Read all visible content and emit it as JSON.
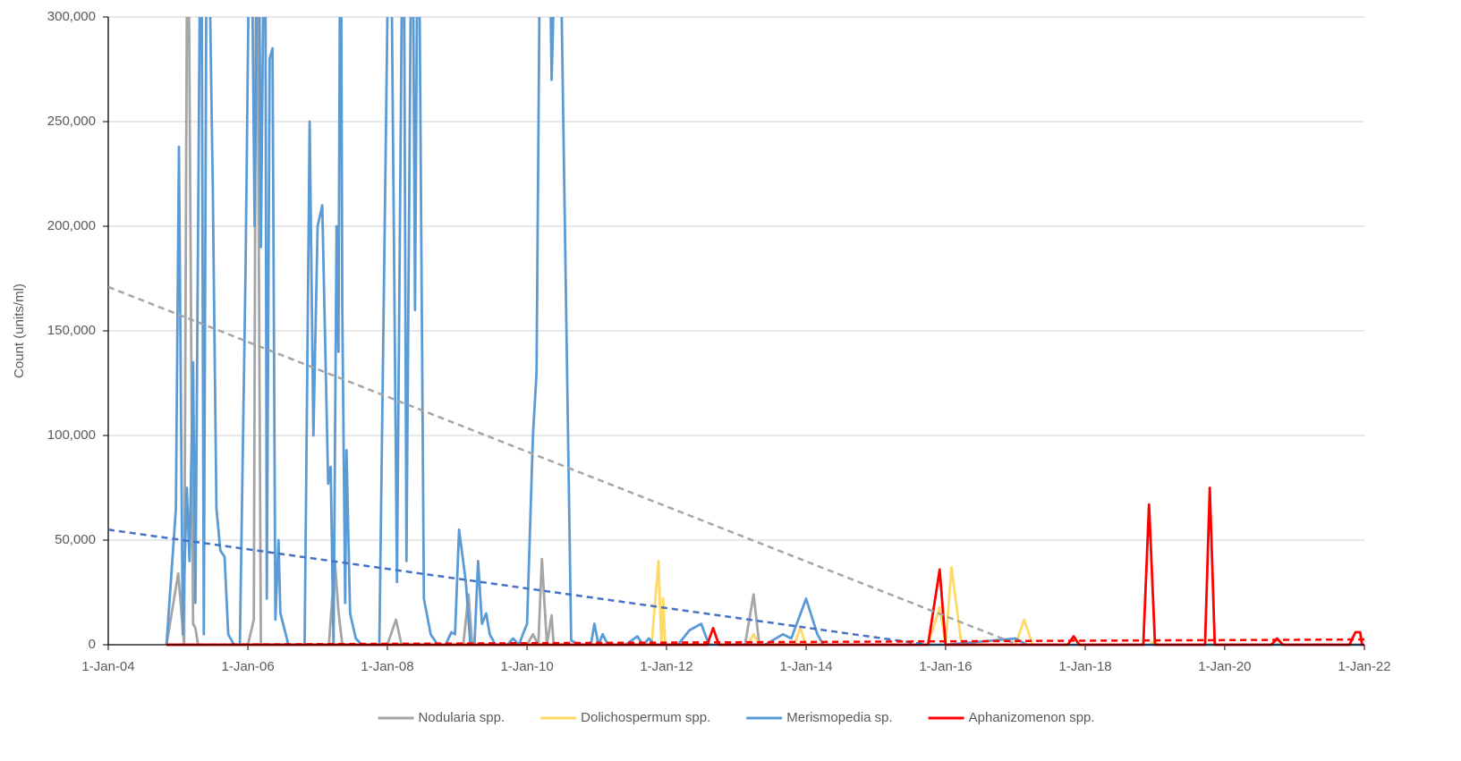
{
  "chart_data": {
    "type": "line",
    "y_label": "Count (units/ml)",
    "xlim": [
      "2004-01-01",
      "2022-01-01"
    ],
    "xticks": [
      {
        "value": "2004-01-01",
        "label": "1-Jan-04"
      },
      {
        "value": "2006-01-01",
        "label": "1-Jan-06"
      },
      {
        "value": "2008-01-01",
        "label": "1-Jan-08"
      },
      {
        "value": "2010-01-01",
        "label": "1-Jan-10"
      },
      {
        "value": "2012-01-01",
        "label": "1-Jan-12"
      },
      {
        "value": "2014-01-01",
        "label": "1-Jan-14"
      },
      {
        "value": "2016-01-01",
        "label": "1-Jan-16"
      },
      {
        "value": "2018-01-01",
        "label": "1-Jan-18"
      },
      {
        "value": "2020-01-01",
        "label": "1-Jan-20"
      },
      {
        "value": "2022-01-01",
        "label": "1-Jan-22"
      }
    ],
    "ylim": [
      0,
      300000
    ],
    "yticks": [
      0,
      {
        "value": 50000,
        "label": "50,000"
      },
      {
        "value": 100000,
        "label": "100,000"
      },
      {
        "value": 150000,
        "label": "150,000"
      },
      {
        "value": 200000,
        "label": "200,000"
      },
      {
        "value": 250000,
        "label": "250,000"
      },
      {
        "value": 300000,
        "label": "300,000"
      }
    ],
    "grid": true,
    "legend": "bottom",
    "series": [
      {
        "name": "Nodularia spp.",
        "color": "#a5a5a5",
        "x": [
          "2004-11-01",
          "2005-01-01",
          "2005-02-01",
          "2005-02-20",
          "2005-03-20",
          "2005-04-01",
          "2005-04-15",
          "2006-01-01",
          "2006-02-01",
          "2006-02-15",
          "2006-03-10",
          "2007-03-01",
          "2007-04-01",
          "2007-04-20",
          "2007-05-10",
          "2008-01-01",
          "2008-02-15",
          "2008-03-15",
          "2009-02-01",
          "2009-03-01",
          "2009-03-20",
          "2010-01-01",
          "2010-02-01",
          "2010-03-01",
          "2010-03-20",
          "2010-04-15",
          "2010-05-10",
          "2010-05-20",
          "2013-02-15",
          "2013-04-01",
          "2013-05-01",
          "2022-01-01"
        ],
        "values": [
          0,
          34000,
          0,
          400000,
          10000,
          8000,
          0,
          0,
          12000,
          400000,
          0,
          0,
          40000,
          16000,
          0,
          0,
          12000,
          0,
          0,
          24000,
          0,
          0,
          5000,
          0,
          41000,
          0,
          14000,
          0,
          0,
          24000,
          0,
          0
        ]
      },
      {
        "name": "Dolichospermum spp.",
        "color": "#ffd966",
        "x": [
          "2004-11-01",
          "2011-10-15",
          "2011-11-20",
          "2011-12-05",
          "2011-12-15",
          "2011-12-25",
          "2013-03-01",
          "2013-04-01",
          "2013-05-01",
          "2013-11-01",
          "2013-12-01",
          "2014-01-01",
          "2015-10-01",
          "2015-12-01",
          "2016-01-01",
          "2016-02-01",
          "2016-03-20",
          "2016-04-01",
          "2017-01-01",
          "2017-02-15",
          "2017-04-01",
          "2018-12-01",
          "2019-01-01",
          "2019-01-15",
          "2022-01-01"
        ],
        "values": [
          0,
          0,
          40000,
          0,
          22000,
          0,
          0,
          5000,
          0,
          0,
          8000,
          0,
          0,
          18000,
          0,
          37000,
          3000,
          0,
          0,
          12000,
          0,
          0,
          2000,
          0,
          0
        ]
      },
      {
        "name": "Merismopedia sp.",
        "color": "#5b9bd5",
        "x": [
          "2004-11-01",
          "2004-12-20",
          "2005-01-05",
          "2005-01-25",
          "2005-02-15",
          "2005-03-01",
          "2005-03-20",
          "2005-04-01",
          "2005-05-01",
          "2005-05-15",
          "2005-06-01",
          "2005-07-01",
          "2005-07-20",
          "2005-08-10",
          "2005-09-01",
          "2005-09-20",
          "2005-10-20",
          "2005-11-20",
          "2005-12-20",
          "2006-01-15",
          "2006-02-05",
          "2006-02-25",
          "2006-03-10",
          "2006-04-01",
          "2006-04-10",
          "2006-04-25",
          "2006-05-10",
          "2006-05-25",
          "2006-06-10",
          "2006-06-20",
          "2006-08-01",
          "2006-10-25",
          "2006-11-20",
          "2006-12-10",
          "2007-01-01",
          "2007-01-25",
          "2007-02-25",
          "2007-03-10",
          "2007-03-25",
          "2007-04-10",
          "2007-04-20",
          "2007-05-01",
          "2007-05-10",
          "2007-05-25",
          "2007-06-01",
          "2007-06-20",
          "2007-07-20",
          "2007-08-20",
          "2007-11-20",
          "2008-01-15",
          "2008-02-20",
          "2008-03-25",
          "2008-04-10",
          "2008-05-10",
          "2008-05-25",
          "2008-06-10",
          "2008-07-10",
          "2008-08-15",
          "2008-09-20",
          "2008-11-01",
          "2008-12-01",
          "2008-12-20",
          "2009-01-10",
          "2009-02-15",
          "2009-03-10",
          "2009-04-01",
          "2009-04-20",
          "2009-05-10",
          "2009-06-01",
          "2009-06-20",
          "2009-07-20",
          "2009-09-20",
          "2009-10-20",
          "2009-11-20",
          "2009-12-10",
          "2010-01-01",
          "2010-02-01",
          "2010-02-20",
          "2010-03-15",
          "2010-04-20",
          "2010-05-10",
          "2010-06-15",
          "2010-08-20",
          "2010-10-01",
          "2010-12-01",
          "2010-12-20",
          "2011-01-10",
          "2011-02-01",
          "2011-03-01",
          "2011-06-01",
          "2011-08-01",
          "2011-09-01",
          "2011-10-01",
          "2011-11-01",
          "2012-03-01",
          "2012-05-01",
          "2012-07-01",
          "2012-08-10",
          "2013-06-01",
          "2013-09-01",
          "2013-10-15",
          "2014-01-01",
          "2014-03-01",
          "2014-04-01",
          "2016-01-01",
          "2017-01-01",
          "2017-03-01",
          "2022-01-01"
        ],
        "values": [
          0,
          65000,
          238000,
          5000,
          75000,
          40000,
          135000,
          20000,
          400000,
          5000,
          400000,
          220000,
          65000,
          45000,
          42000,
          5000,
          0,
          0,
          180000,
          400000,
          200000,
          400000,
          190000,
          400000,
          22000,
          280000,
          285000,
          12000,
          50000,
          15000,
          0,
          0,
          250000,
          100000,
          200000,
          210000,
          77000,
          85000,
          0,
          200000,
          140000,
          400000,
          160000,
          20000,
          93000,
          15000,
          3000,
          0,
          0,
          400000,
          30000,
          400000,
          40000,
          400000,
          160000,
          400000,
          22000,
          5000,
          0,
          0,
          6000,
          5000,
          55000,
          30000,
          0,
          0,
          40000,
          10000,
          15000,
          5000,
          0,
          0,
          3000,
          0,
          5000,
          10000,
          100000,
          130000,
          400000,
          400000,
          270000,
          400000,
          2000,
          0,
          0,
          10000,
          0,
          5000,
          0,
          0,
          4000,
          0,
          3000,
          0,
          0,
          7000,
          10000,
          0,
          0,
          5000,
          3000,
          22000,
          5000,
          0,
          0,
          3000,
          0,
          0
        ]
      },
      {
        "name": "Aphanizomenon spp.",
        "color": "#ff0000",
        "x": [
          "2004-11-01",
          "2012-08-01",
          "2012-09-01",
          "2012-10-01",
          "2015-10-01",
          "2015-12-01",
          "2016-01-01",
          "2017-10-01",
          "2017-11-01",
          "2017-12-01",
          "2018-11-01",
          "2018-12-01",
          "2019-01-01",
          "2019-09-20",
          "2019-10-15",
          "2019-11-10",
          "2020-09-01",
          "2020-10-01",
          "2020-11-01",
          "2021-10-15",
          "2021-11-15",
          "2021-12-10",
          "2021-12-20",
          "2022-01-01"
        ],
        "values": [
          0,
          0,
          8000,
          0,
          0,
          36000,
          0,
          0,
          4000,
          0,
          0,
          67000,
          0,
          0,
          75000,
          0,
          0,
          3000,
          0,
          0,
          6000,
          6000,
          0,
          0
        ]
      }
    ],
    "trendlines": [
      {
        "color": "#a5a5a5",
        "x": [
          "2004-01-01",
          "2017-01-15"
        ],
        "values": [
          171000,
          0
        ]
      },
      {
        "color": "#4472c4",
        "x": [
          "2004-01-01",
          "2015-10-01"
        ],
        "values": [
          55000,
          0
        ]
      },
      {
        "color": "#ff0000",
        "x": [
          "2004-11-01",
          "2022-01-01"
        ],
        "values": [
          0,
          2500
        ]
      }
    ]
  }
}
